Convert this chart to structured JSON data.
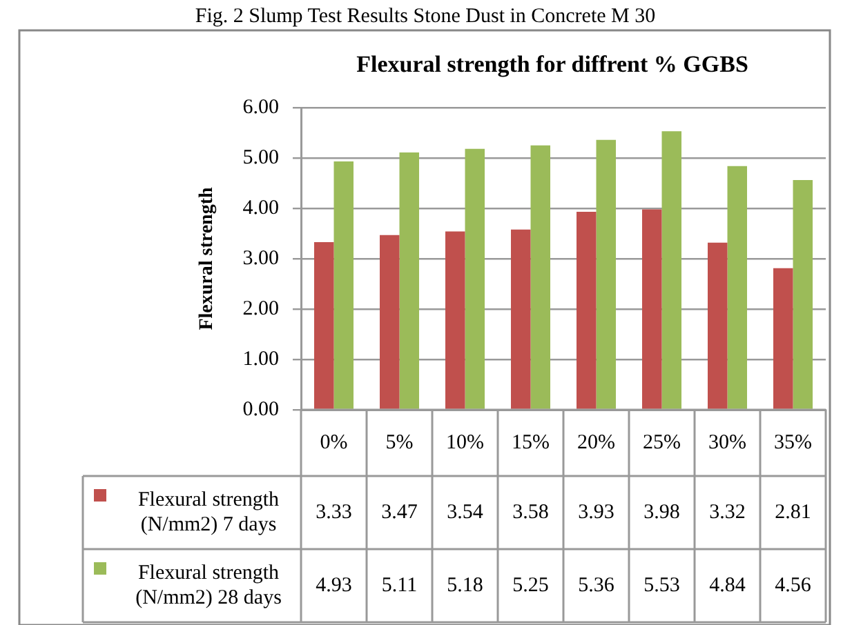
{
  "chart_data": {
    "type": "bar",
    "title": "Flexural strength for diffrent % GGBS",
    "ylabel": "Flexural strength",
    "annotations": [
      "Fig. 2 Slump Test Results Stone Dust in Concrete M 30"
    ],
    "categories": [
      "0%",
      "5%",
      "10%",
      "15%",
      "20%",
      "25%",
      "30%",
      "35%"
    ],
    "series": [
      {
        "name": "Flexural strength (N/mm2) 7 days",
        "color": "#c0504d",
        "values": [
          3.33,
          3.47,
          3.54,
          3.58,
          3.93,
          3.98,
          3.32,
          2.81
        ]
      },
      {
        "name": "Flexural strength (N/mm2) 28 days",
        "color": "#9bbb59",
        "values": [
          4.93,
          5.11,
          5.18,
          5.25,
          5.36,
          5.53,
          4.84,
          4.56
        ]
      }
    ],
    "ylim": [
      0,
      6
    ],
    "yticks": [
      {
        "value": 0,
        "label": "0.00"
      },
      {
        "value": 1,
        "label": "1.00"
      },
      {
        "value": 2,
        "label": "2.00"
      },
      {
        "value": 3,
        "label": "3.00"
      },
      {
        "value": 4,
        "label": "4.00"
      },
      {
        "value": 5,
        "label": "5.00"
      },
      {
        "value": 6,
        "label": "6.00"
      }
    ],
    "grid": "y",
    "legend": "bottom",
    "data_labels": true
  }
}
